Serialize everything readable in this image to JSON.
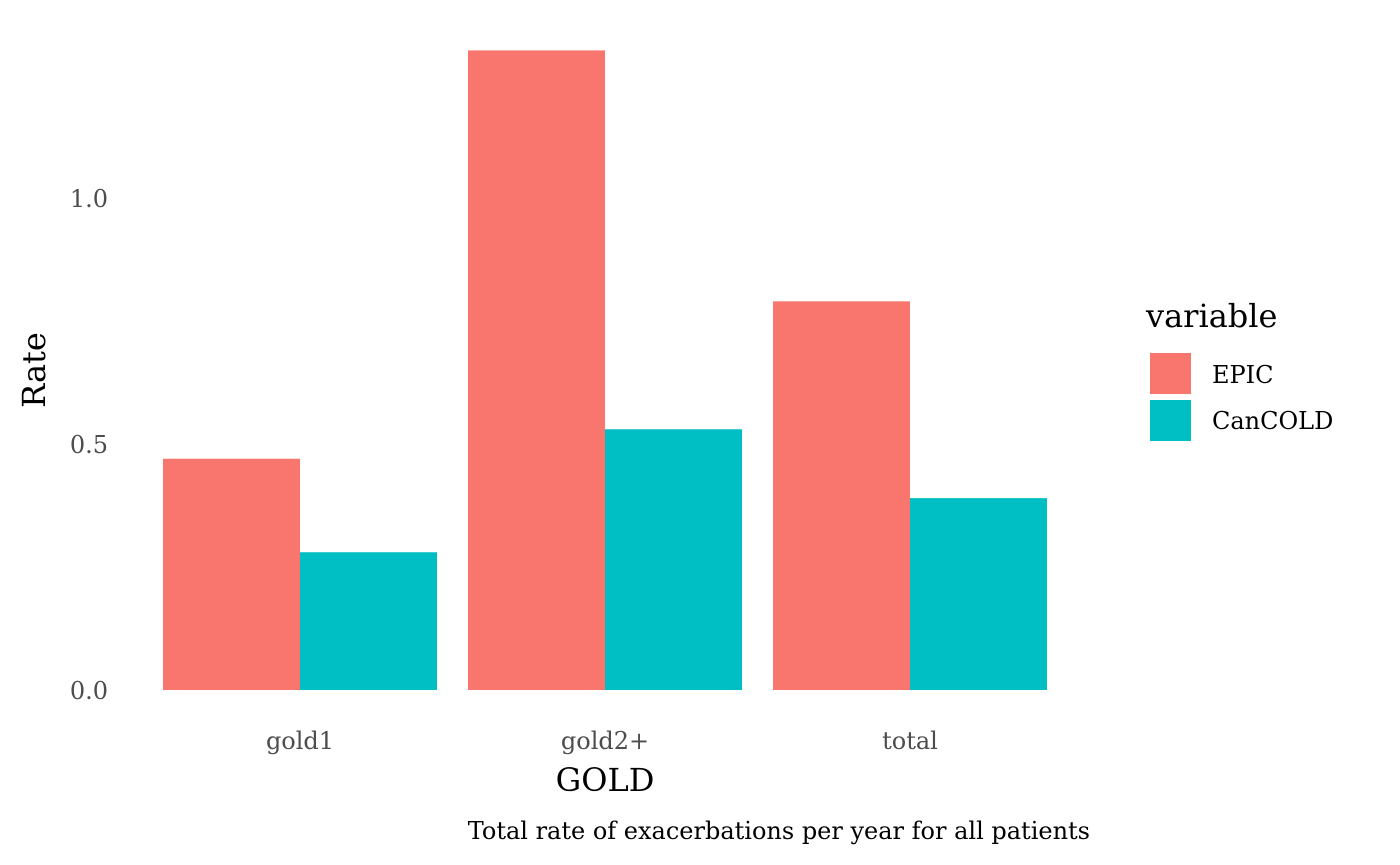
{
  "chart_data": {
    "type": "bar",
    "title": "",
    "xlabel": "GOLD",
    "ylabel": "Rate",
    "caption": "Total rate of exacerbations per year for all patients",
    "categories": [
      "gold1",
      "gold2+",
      "total"
    ],
    "series": [
      {
        "name": "EPIC",
        "color": "#F8766D",
        "values": [
          0.47,
          1.3,
          0.79
        ]
      },
      {
        "name": "CanCOLD",
        "color": "#00BFC4",
        "values": [
          0.28,
          0.53,
          0.39
        ]
      }
    ],
    "ylim": [
      0,
      1.3
    ],
    "yticks": [
      {
        "value": 0,
        "label": "0.0"
      },
      {
        "value": 0.5,
        "label": "0.5"
      },
      {
        "value": 1.0,
        "label": "1.0"
      }
    ],
    "grid": false,
    "legend": {
      "title": "variable",
      "position": "right"
    }
  }
}
